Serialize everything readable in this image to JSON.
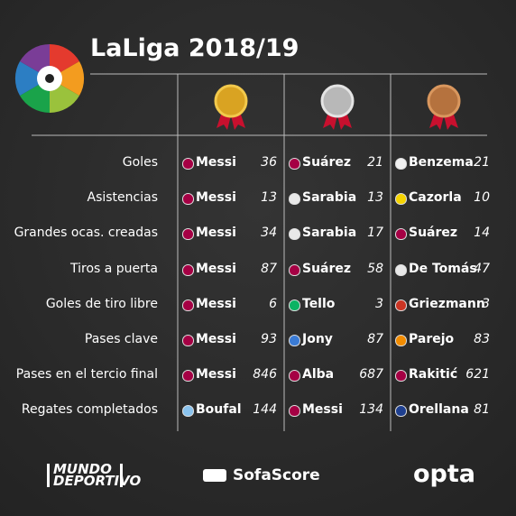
{
  "header": {
    "title": "LaLiga 2018/19"
  },
  "table": {
    "rows": [
      {
        "label": "Goles",
        "entries": [
          {
            "player": "Messi",
            "value": 36,
            "badge": "#a50044"
          },
          {
            "player": "Suárez",
            "value": 21,
            "badge": "#a50044"
          },
          {
            "player": "Benzema",
            "value": 21,
            "badge": "#f0f0f0"
          }
        ]
      },
      {
        "label": "Asistencias",
        "entries": [
          {
            "player": "Messi",
            "value": 13,
            "badge": "#a50044"
          },
          {
            "player": "Sarabia",
            "value": 13,
            "badge": "#e8e8e8"
          },
          {
            "player": "Cazorla",
            "value": 10,
            "badge": "#f5d300"
          }
        ]
      },
      {
        "label": "Grandes ocas. creadas",
        "entries": [
          {
            "player": "Messi",
            "value": 34,
            "badge": "#a50044"
          },
          {
            "player": "Sarabia",
            "value": 17,
            "badge": "#e8e8e8"
          },
          {
            "player": "Suárez",
            "value": 14,
            "badge": "#a50044"
          }
        ]
      },
      {
        "label": "Tiros a puerta",
        "entries": [
          {
            "player": "Messi",
            "value": 87,
            "badge": "#a50044"
          },
          {
            "player": "Suárez",
            "value": 58,
            "badge": "#a50044"
          },
          {
            "player": "De Tomás",
            "value": 47,
            "badge": "#e8e8e8"
          }
        ]
      },
      {
        "label": "Goles de tiro libre",
        "entries": [
          {
            "player": "Messi",
            "value": 6,
            "badge": "#a50044"
          },
          {
            "player": "Tello",
            "value": 3,
            "badge": "#0bb363"
          },
          {
            "player": "Griezmann",
            "value": 3,
            "badge": "#cb3524"
          }
        ]
      },
      {
        "label": "Pases clave",
        "entries": [
          {
            "player": "Messi",
            "value": 93,
            "badge": "#a50044"
          },
          {
            "player": "Jony",
            "value": 87,
            "badge": "#3a7bd5"
          },
          {
            "player": "Parejo",
            "value": 83,
            "badge": "#f28c00"
          }
        ]
      },
      {
        "label": "Pases en el tercio final",
        "entries": [
          {
            "player": "Messi",
            "value": 846,
            "badge": "#a50044"
          },
          {
            "player": "Alba",
            "value": 687,
            "badge": "#a50044"
          },
          {
            "player": "Rakitić",
            "value": 621,
            "badge": "#a50044"
          }
        ]
      },
      {
        "label": "Regates completados",
        "entries": [
          {
            "player": "Boufal",
            "value": 144,
            "badge": "#8ac3ee"
          },
          {
            "player": "Messi",
            "value": 134,
            "badge": "#a50044"
          },
          {
            "player": "Orellana",
            "value": 81,
            "badge": "#1e3f8f"
          }
        ]
      }
    ]
  },
  "footer": {
    "left": "MUNDO DEPORTIVO",
    "center": "SofaScore",
    "right": "opta"
  }
}
